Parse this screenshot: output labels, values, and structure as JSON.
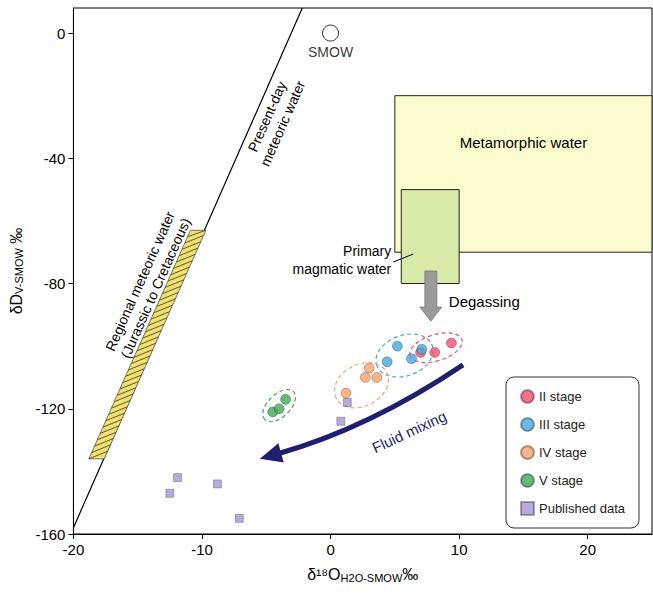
{
  "chart_data": {
    "type": "scatter",
    "xlabel": "δ¹⁸O",
    "xlabel_sub": "H2O-SMOW",
    "xlabel_unit": "‰",
    "ylabel": "δD",
    "ylabel_sub": "V-SMOW",
    "ylabel_unit": "‰",
    "xlim": [
      -20,
      25
    ],
    "xticks": [
      -20,
      -10,
      0,
      10,
      20
    ],
    "ylim": [
      -160,
      8
    ],
    "yticks": [
      -160,
      -120,
      -80,
      -40,
      0
    ],
    "grid": false,
    "legend": "lower right",
    "series": [
      {
        "name": "II stage",
        "color": "#f0506e",
        "marker": "circle",
        "x": [
          7.0,
          8.1,
          9.4
        ],
        "values": [
          -102,
          -102,
          -99
        ]
      },
      {
        "name": "III stage",
        "color": "#46a8e0",
        "marker": "circle",
        "x": [
          4.4,
          5.2,
          6.3,
          7.1
        ],
        "values": [
          -105,
          -100,
          -104,
          -101
        ]
      },
      {
        "name": "IV stage",
        "color": "#f7a26b",
        "marker": "circle",
        "x": [
          1.2,
          2.7,
          3.0,
          3.6
        ],
        "values": [
          -115,
          -110,
          -107,
          -110
        ]
      },
      {
        "name": "V stage",
        "color": "#3ea85a",
        "marker": "circle",
        "x": [
          -4.5,
          -4.0,
          -3.5
        ],
        "values": [
          -121,
          -120,
          -117
        ]
      },
      {
        "name": "Published data",
        "color": "#a596d6",
        "marker": "square",
        "x": [
          1.3,
          0.8,
          -11.9,
          -12.5,
          -8.8,
          -7.1
        ],
        "values": [
          -118,
          -124,
          -142,
          -147,
          -144,
          -155
        ]
      }
    ],
    "reference_point": {
      "label": "SMOW",
      "x": 0,
      "y": 0
    },
    "lines": [
      {
        "label": "Present-day\nmeteoric water",
        "x": [
          -20,
          -2.2
        ],
        "y": [
          -158,
          8
        ],
        "color": "#000000"
      }
    ],
    "bands": [
      {
        "label": "Regional meteoric water\n(Jurassic to Cretaceous)",
        "x": [
          -18.8,
          -17.6,
          -9.7,
          -10.9
        ],
        "y": [
          -136,
          -136,
          -63,
          -63
        ],
        "color": "#f2e16b"
      }
    ],
    "regions": [
      {
        "label": "Metamorphic water",
        "x": [
          5,
          25
        ],
        "y": [
          -70,
          -20
        ],
        "color": "#fcfccf"
      },
      {
        "label": "Primary\nmagmatic water",
        "x": [
          5.5,
          10
        ],
        "y": [
          -80,
          -50
        ],
        "color": "#d8eaa8"
      }
    ],
    "arrows": [
      {
        "label": "Degassing",
        "x": [
          7.8,
          7.8
        ],
        "y": [
          -76,
          -92
        ],
        "color": "#9a9a9a"
      },
      {
        "label": "Fluid mixing",
        "x": [
          10.3,
          -5.5
        ],
        "y": [
          -106,
          -136
        ],
        "color": "#1f1f6e"
      }
    ]
  }
}
